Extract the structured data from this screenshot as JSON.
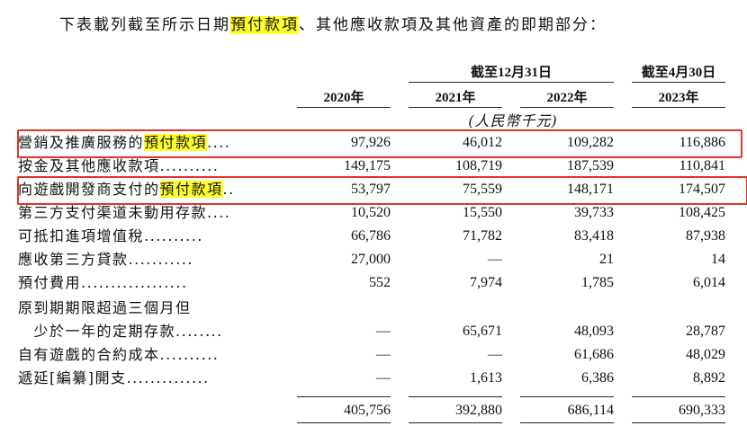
{
  "intro": {
    "before": "下表載列截至所示日期",
    "highlight": "預付款項",
    "after": "、其他應收款項及其他資產的即期部分："
  },
  "header": {
    "group1": "截至12月31日",
    "group2": "截至4月30日",
    "years": [
      "2020年",
      "2021年",
      "2022年",
      "2023年"
    ],
    "unit": "(人民幣千元)"
  },
  "rows": [
    {
      "label": "營銷及推廣服務的",
      "label_highlight": "預付款項",
      "leader": "....",
      "values": [
        "97,926",
        "46,012",
        "109,282",
        "116,886"
      ]
    },
    {
      "label": "按金及其他應收款項",
      "label_highlight": "",
      "leader": "..........",
      "values": [
        "149,175",
        "108,719",
        "187,539",
        "110,841"
      ]
    },
    {
      "label": "向遊戲開發商支付的",
      "label_highlight": "預付款項",
      "leader": "..",
      "values": [
        "53,797",
        "75,559",
        "148,171",
        "174,507"
      ]
    },
    {
      "label": "第三方支付渠道未動用存款",
      "label_highlight": "",
      "leader": "....",
      "values": [
        "10,520",
        "15,550",
        "39,733",
        "108,425"
      ]
    },
    {
      "label": "可抵扣進項增值稅",
      "label_highlight": "",
      "leader": "..........",
      "values": [
        "66,786",
        "71,782",
        "83,418",
        "87,938"
      ]
    },
    {
      "label": "應收第三方貸款",
      "label_highlight": "",
      "leader": "...........",
      "values": [
        "27,000",
        "—",
        "21",
        "14"
      ]
    },
    {
      "label": "預付費用",
      "label_highlight": "",
      "leader": "..................",
      "values": [
        "552",
        "7,974",
        "1,785",
        "6,014"
      ]
    },
    {
      "label": "原到期期限超過三個月但",
      "label_highlight": "",
      "leader": "",
      "values": [
        "",
        "",
        "",
        ""
      ]
    },
    {
      "label": "　少於一年的定期存款",
      "label_highlight": "",
      "leader": "........",
      "values": [
        "—",
        "65,671",
        "48,093",
        "28,787"
      ]
    },
    {
      "label": "自有遊戲的合約成本",
      "label_highlight": "",
      "leader": "..........",
      "values": [
        "—",
        "—",
        "61,686",
        "48,029"
      ]
    },
    {
      "label": "遞延[編纂]開支",
      "label_highlight": "",
      "leader": "..............",
      "values": [
        "—",
        "1,613",
        "6,386",
        "8,892"
      ]
    }
  ],
  "totals": [
    "405,756",
    "392,880",
    "686,114",
    "690,333"
  ],
  "colors": {
    "highlight": "#ffff2a",
    "box": "#e0342f"
  }
}
